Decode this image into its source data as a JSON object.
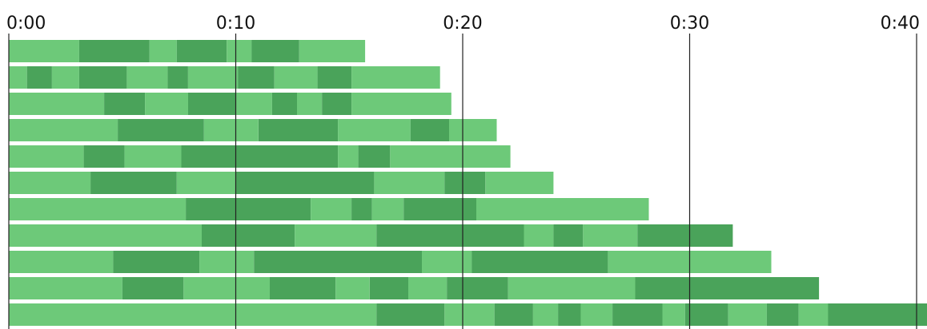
{
  "chart_data": {
    "type": "bar",
    "orientation": "horizontal",
    "stacked": true,
    "x_unit": "seconds",
    "xlim": [
      0,
      40
    ],
    "x_ticks": [
      0,
      10,
      20,
      30,
      40
    ],
    "x_tick_labels": [
      "0:00",
      "0:10",
      "0:20",
      "0:30",
      "0:40"
    ],
    "grid": true,
    "legend": "none",
    "colors": {
      "light": "#6dc979",
      "dark": "#4aa35a",
      "gridline": "#222222"
    },
    "rows": [
      {
        "segments": [
          3.1,
          3.1,
          1.2,
          2.2,
          1.1,
          2.1,
          2.9
        ]
      },
      {
        "segments": [
          0.8,
          1.1,
          1.2,
          2.1,
          1.8,
          0.9,
          2.2,
          1.6,
          1.9,
          1.5,
          3.9
        ]
      },
      {
        "segments": [
          4.2,
          1.8,
          1.9,
          2.1,
          1.6,
          1.1,
          1.1,
          1.3,
          4.4
        ]
      },
      {
        "segments": [
          4.8,
          3.8,
          2.4,
          3.5,
          3.2,
          1.7,
          2.1
        ]
      },
      {
        "segments": [
          3.3,
          1.8,
          2.5,
          6.9,
          0.9,
          1.4,
          5.3
        ]
      },
      {
        "segments": [
          3.6,
          3.8,
          2.6,
          6.1,
          3.1,
          1.8,
          3.0
        ]
      },
      {
        "segments": [
          7.8,
          5.5,
          1.8,
          0.9,
          1.4,
          3.2,
          7.6
        ]
      },
      {
        "segments": [
          8.5,
          4.1,
          3.6,
          6.5,
          1.3,
          1.3,
          2.4,
          4.2
        ]
      },
      {
        "segments": [
          4.6,
          3.8,
          2.4,
          7.4,
          2.2,
          6.0,
          7.2
        ]
      },
      {
        "segments": [
          5.0,
          2.7,
          3.8,
          2.9,
          1.5,
          1.7,
          1.7,
          2.7,
          5.6,
          8.1
        ]
      },
      {
        "segments": [
          16.2,
          3.0,
          2.2,
          1.7,
          1.1,
          1.0,
          1.4,
          2.2,
          1.0,
          1.9,
          1.7,
          1.4,
          1.3,
          5.3
        ]
      }
    ]
  }
}
